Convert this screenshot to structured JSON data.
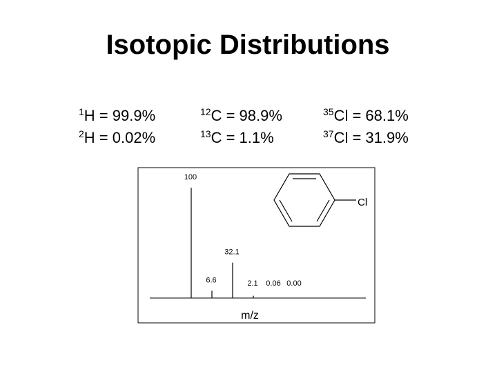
{
  "title": "Isotopic Distributions",
  "isotopes": [
    [
      {
        "mass": "1",
        "text": "H = 99.9%"
      },
      {
        "mass": "2",
        "text": "H = 0.02%"
      }
    ],
    [
      {
        "mass": "12",
        "text": "C = 98.9%"
      },
      {
        "mass": "13",
        "text": "C = 1.1%"
      }
    ],
    [
      {
        "mass": "35",
        "text": "Cl = 68.1%"
      },
      {
        "mass": "37",
        "text": "Cl = 31.9%"
      }
    ]
  ],
  "chart_data": {
    "type": "bar",
    "x_label": "m/z",
    "structure_label": "Cl",
    "categories": [
      null,
      null,
      null,
      null,
      null,
      null
    ],
    "values": [
      100,
      6.6,
      32.1,
      2.1,
      0.06,
      0.0
    ],
    "value_labels": [
      "100",
      "6.6",
      "32.1",
      "2.1",
      "0.06",
      "0.00"
    ],
    "color": "#000000",
    "ylim": [
      0,
      117
    ]
  }
}
